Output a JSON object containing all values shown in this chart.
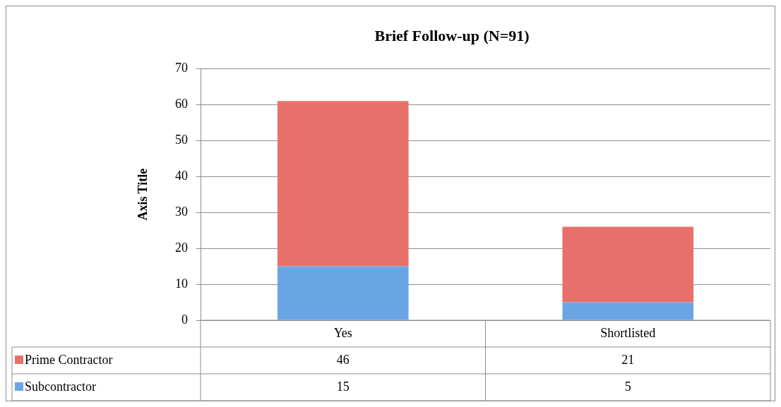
{
  "chart_data": {
    "type": "bar",
    "title": "Brief Follow-up (N=91)",
    "ylabel": "Axis Title",
    "categories": [
      "Yes",
      "Shortlisted"
    ],
    "stacked": true,
    "series": [
      {
        "name": "Subcontractor",
        "color": "#6aa6e6",
        "values": [
          15,
          5
        ]
      },
      {
        "name": "Prime Contractor",
        "color": "#e8706a",
        "values": [
          46,
          21
        ]
      }
    ],
    "ylim": [
      0,
      70
    ],
    "yticks": [
      0,
      10,
      20,
      30,
      40,
      50,
      60,
      70
    ],
    "grid": "y",
    "data_labels": true,
    "legend": "bottom left"
  }
}
